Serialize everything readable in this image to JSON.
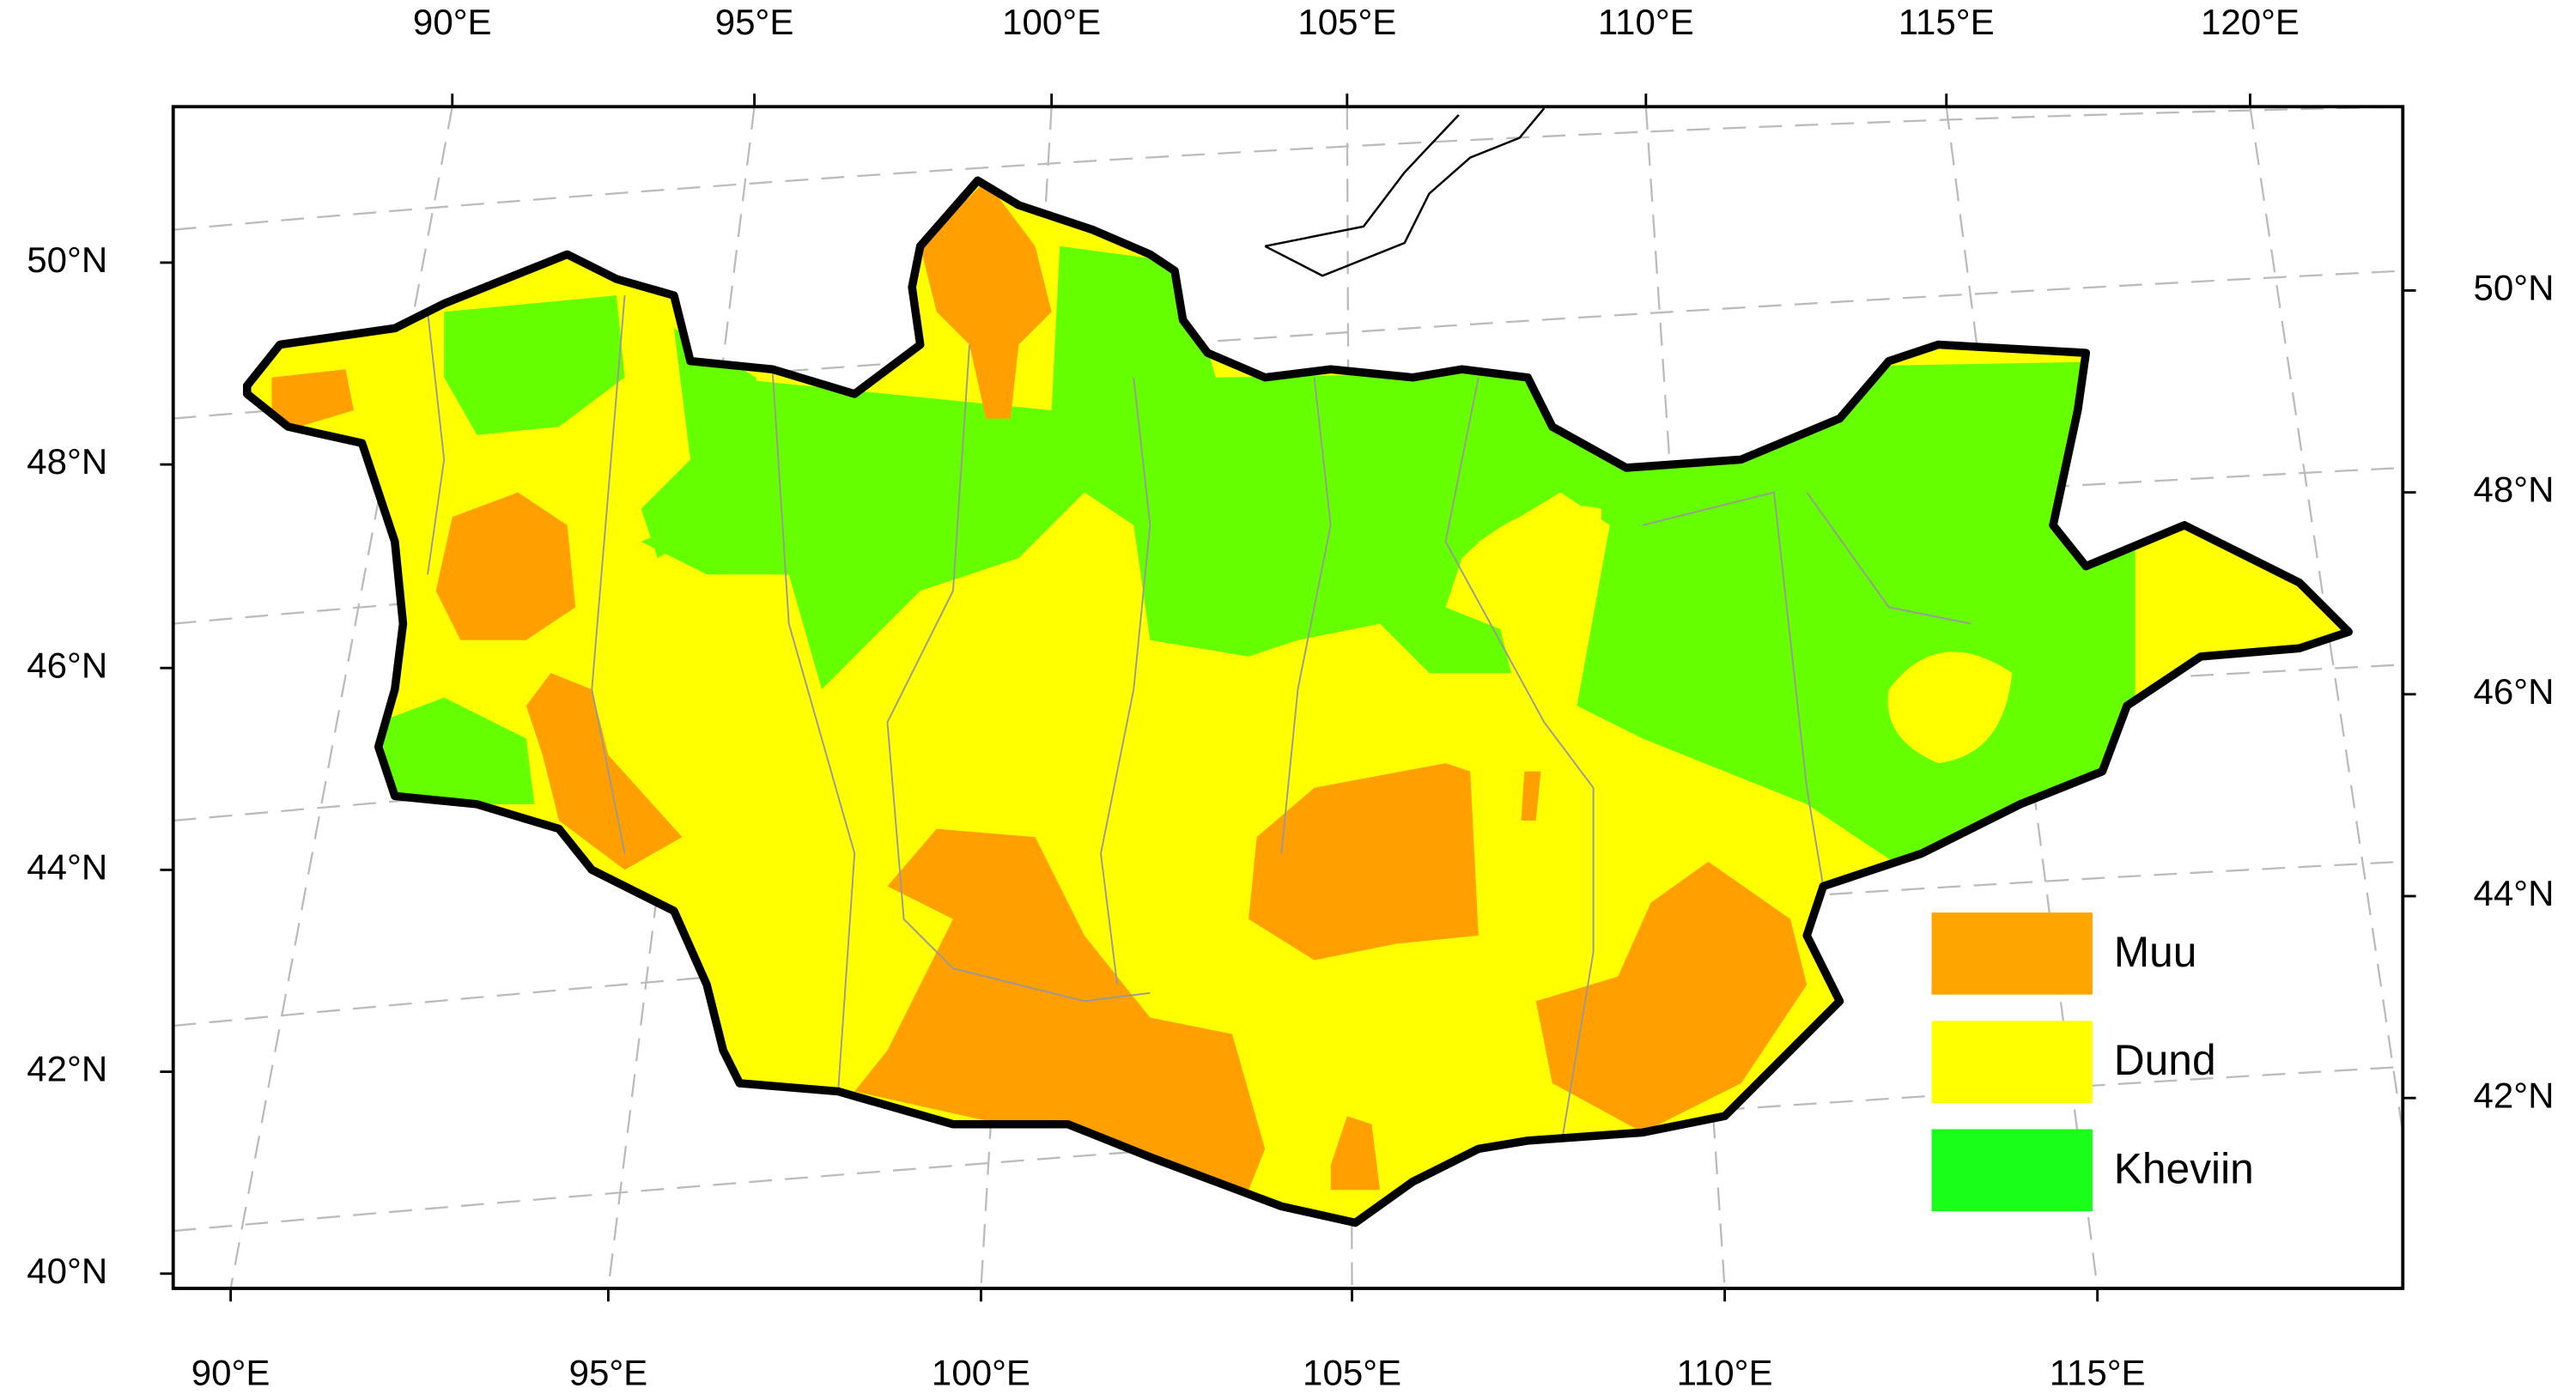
{
  "map": {
    "top_labels": [
      "90°E",
      "95°E",
      "100°E",
      "105°E",
      "110°E",
      "115°E",
      "120°E"
    ],
    "bottom_labels": [
      "90°E",
      "95°E",
      "100°E",
      "105°E",
      "110°E",
      "115°E"
    ],
    "left_labels": [
      "50°N",
      "48°N",
      "46°N",
      "44°N",
      "42°N",
      "40°N"
    ],
    "right_labels": [
      "50°N",
      "48°N",
      "46°N",
      "44°N",
      "42°N"
    ],
    "legend": [
      {
        "name": "Muu",
        "color": "#ffa500"
      },
      {
        "name": "Dund",
        "color": "#ffff00"
      },
      {
        "name": "Kheviin",
        "color": "#1aff1a"
      }
    ]
  }
}
